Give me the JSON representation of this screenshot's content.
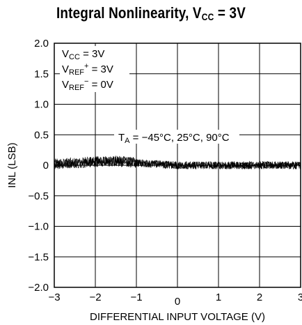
{
  "chart_data": {
    "type": "line",
    "title": {
      "main": "Integral Nonlinearity, V",
      "sub": "CC",
      "tail": " = 3V"
    },
    "xlabel": "DIFFERENTIAL INPUT VOLTAGE (V)",
    "ylabel": "INL (LSB)",
    "xlim": [
      -3,
      3
    ],
    "ylim": [
      -2.0,
      2.0
    ],
    "x_ticks": [
      "−3",
      "−2",
      "−1",
      "0",
      "1",
      "2",
      "3"
    ],
    "y_ticks": [
      "2.0",
      "1.5",
      "1.0",
      "0.5",
      "0",
      "−0.5",
      "−1.0",
      "−1.5",
      "−2.0"
    ],
    "grid": true,
    "conditions": [
      {
        "main": "V",
        "sub": "CC",
        "sup": "",
        "tail": " = 3V"
      },
      {
        "main": "V",
        "sub": "REF",
        "sup": "+",
        "tail": " = 3V"
      },
      {
        "main": "V",
        "sub": "REF",
        "sup": "−",
        "tail": " = 0V"
      }
    ],
    "annotation": {
      "main": "T",
      "sub": "A",
      "tail": " = −45°C, 25°C, 90°C"
    },
    "series": [
      {
        "x_range": [
          -3,
          3
        ],
        "baseline": [
          [
            -3,
            0.02
          ],
          [
            -2,
            0.06
          ],
          [
            -1.5,
            0.07
          ],
          [
            -1,
            0.04
          ],
          [
            0,
            0.0
          ],
          [
            1,
            0.0
          ],
          [
            2,
            0.0
          ],
          [
            3,
            0.0
          ]
        ],
        "noise_amplitude": 0.08
      }
    ]
  }
}
